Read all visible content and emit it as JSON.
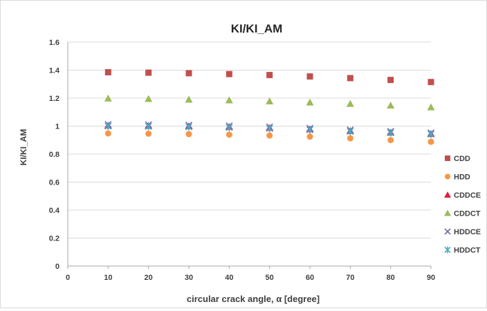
{
  "chart_data": {
    "type": "scatter",
    "title": "KI/KI_AM",
    "xlabel": "circular crack angle, α  [degree]",
    "ylabel": "KI/KI_AM",
    "xlim": [
      0,
      90
    ],
    "ylim": [
      0,
      1.6
    ],
    "x_ticks": [
      "0",
      "10",
      "20",
      "30",
      "40",
      "50",
      "60",
      "70",
      "80",
      "90"
    ],
    "y_ticks": [
      "0",
      "0.2",
      "0.4",
      "0.6",
      "0.8",
      "1",
      "1.2",
      "1.4",
      "1.6"
    ],
    "grid": "horizontal",
    "legend_position": "right",
    "x": [
      10,
      20,
      30,
      40,
      50,
      60,
      70,
      80,
      90
    ],
    "series": [
      {
        "name": "CDD",
        "marker": "square",
        "color": "#c0504d",
        "values": [
          1.385,
          1.382,
          1.378,
          1.372,
          1.365,
          1.355,
          1.343,
          1.33,
          1.315
        ]
      },
      {
        "name": "HDD",
        "marker": "circle",
        "color": "#f79646",
        "values": [
          0.948,
          0.946,
          0.943,
          0.939,
          0.933,
          0.925,
          0.913,
          0.9,
          0.888
        ]
      },
      {
        "name": "CDDCE",
        "marker": "triangle",
        "color": "#e0203c",
        "values": [
          1.005,
          1.003,
          1.0,
          0.995,
          0.988,
          0.978,
          0.966,
          0.955,
          0.945
        ]
      },
      {
        "name": "CDDCT",
        "marker": "triangle",
        "color": "#9bbb59",
        "values": [
          1.198,
          1.195,
          1.19,
          1.185,
          1.178,
          1.17,
          1.16,
          1.148,
          1.135
        ]
      },
      {
        "name": "HDDCE",
        "marker": "x",
        "color": "#8064a2",
        "values": [
          1.012,
          1.01,
          1.007,
          1.002,
          0.995,
          0.985,
          0.973,
          0.962,
          0.952
        ]
      },
      {
        "name": "HDDCT",
        "marker": "asterisk",
        "color": "#4bacc6",
        "values": [
          1.0,
          0.998,
          0.995,
          0.99,
          0.983,
          0.974,
          0.962,
          0.952,
          0.942
        ]
      }
    ]
  }
}
